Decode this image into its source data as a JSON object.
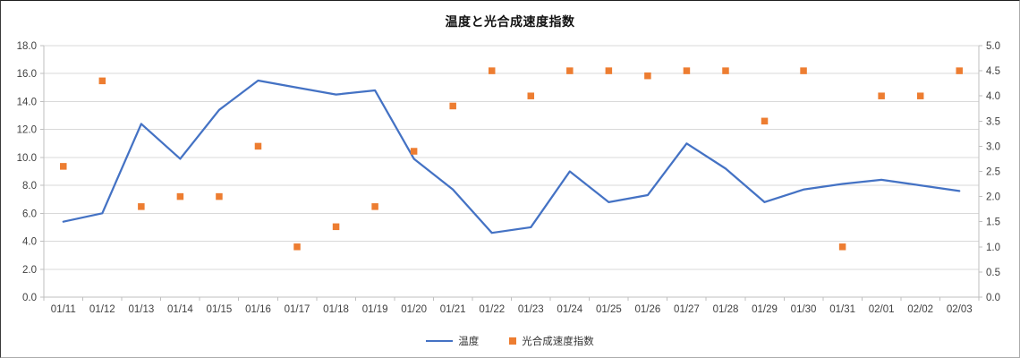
{
  "title": "温度と光合成速度指数",
  "colors": {
    "line": "#4472C4",
    "marker": "#ED7D31",
    "gridline": "#D9D9D9",
    "axis_line": "#BFBFBF",
    "tick_label": "#404040",
    "title_color": "#111111",
    "background": "#FFFFFF"
  },
  "legend": [
    {
      "label": "温度",
      "swatch": "line-sample-icon"
    },
    {
      "label": "光合成速度指数",
      "swatch": "square-marker-icon"
    }
  ],
  "chart_data": {
    "type": "combo",
    "title": "温度と光合成速度指数",
    "categories": [
      "01/11",
      "01/12",
      "01/13",
      "01/14",
      "01/15",
      "01/16",
      "01/17",
      "01/18",
      "01/19",
      "01/20",
      "01/21",
      "01/22",
      "01/23",
      "01/24",
      "01/25",
      "01/26",
      "01/27",
      "01/28",
      "01/29",
      "01/30",
      "01/31",
      "02/01",
      "02/02",
      "02/03"
    ],
    "series": [
      {
        "name": "温度",
        "type": "line",
        "axis": "left",
        "color": "#4472C4",
        "values": [
          5.4,
          6.0,
          12.4,
          9.9,
          13.4,
          15.5,
          15.0,
          14.5,
          14.8,
          9.9,
          7.7,
          4.6,
          5.0,
          9.0,
          6.8,
          7.3,
          11.0,
          9.2,
          6.8,
          7.7,
          8.1,
          8.4,
          8.0,
          7.6
        ]
      },
      {
        "name": "光合成速度指数",
        "type": "scatter",
        "axis": "right",
        "color": "#ED7D31",
        "values": [
          2.6,
          4.3,
          1.8,
          2.0,
          2.0,
          3.0,
          1.0,
          1.4,
          1.8,
          2.9,
          3.8,
          4.5,
          4.0,
          4.5,
          4.5,
          4.4,
          4.5,
          4.5,
          3.5,
          4.5,
          1.0,
          4.0,
          4.0,
          4.5
        ]
      }
    ],
    "left_axis": {
      "min": 0,
      "max": 18,
      "step": 2,
      "tick_labels": [
        "0.0",
        "2.0",
        "4.0",
        "6.0",
        "8.0",
        "10.0",
        "12.0",
        "14.0",
        "16.0",
        "18.0"
      ]
    },
    "right_axis": {
      "min": 0,
      "max": 5,
      "step": 0.5,
      "tick_labels": [
        "0.0",
        "0.5",
        "1.0",
        "1.5",
        "2.0",
        "2.5",
        "3.0",
        "3.5",
        "4.0",
        "4.5",
        "5.0"
      ]
    },
    "grid": true,
    "legend_position": "bottom"
  }
}
